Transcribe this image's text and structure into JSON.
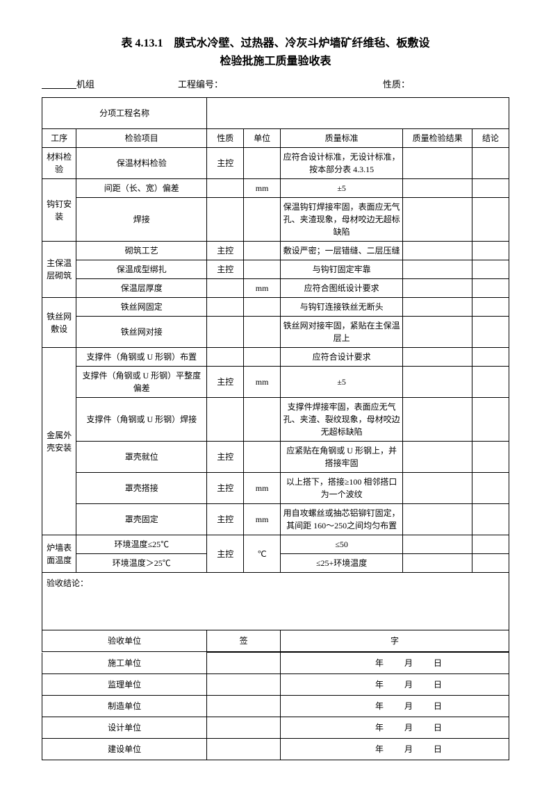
{
  "title_line1": "表 4.13.1　膜式水冷壁、过热器、冷灰斗炉墙矿纤维毡、板敷设",
  "title_line2": "检验批施工质量验收表",
  "meta": {
    "unit_label": "机组",
    "proj_no_label": "工程编号：",
    "nature_label": "性质："
  },
  "subproject_label": "分项工程名称",
  "headers": {
    "c1": "工序",
    "c2": "检验项目",
    "c3": "性质",
    "c4": "单位",
    "c5": "质量标准",
    "c6": "质量检验结果",
    "c7": "结论"
  },
  "groups": [
    {
      "name": "材料检验",
      "rows": [
        {
          "item": "保温材料检验",
          "nature": "主控",
          "unit": "",
          "std": "应符合设计标准，无设计标准，按本部分表 4.3.15"
        }
      ]
    },
    {
      "name": "钩钉安装",
      "rows": [
        {
          "item": "间距（长、宽）偏差",
          "nature": "",
          "unit": "mm",
          "std": "±5"
        },
        {
          "item": "焊接",
          "nature": "",
          "unit": "",
          "std": "保温钩钉焊接牢固，表面应无气孔、夹渣现象，母材咬边无超标缺陷"
        }
      ]
    },
    {
      "name": "主保温层砌筑",
      "rows": [
        {
          "item": "砌筑工艺",
          "nature": "主控",
          "unit": "",
          "std": "敷设严密；一层错缝、二层压缝"
        },
        {
          "item": "保温成型绑扎",
          "nature": "主控",
          "unit": "",
          "std": "与钩钉固定牢靠"
        },
        {
          "item": "保温层厚度",
          "nature": "",
          "unit": "mm",
          "std": "应符合图纸设计要求"
        }
      ]
    },
    {
      "name": "铁丝网敷设",
      "rows": [
        {
          "item": "铁丝网固定",
          "nature": "",
          "unit": "",
          "std": "与钩钉连接铁丝无断头"
        },
        {
          "item": "铁丝网对接",
          "nature": "",
          "unit": "",
          "std": "铁丝网对接牢固，紧贴在主保温层上"
        }
      ]
    },
    {
      "name": "金属外壳安装",
      "rows": [
        {
          "item": "支撑件（角钢或 U 形钢）布置",
          "nature": "",
          "unit": "",
          "std": "应符合设计要求"
        },
        {
          "item": "支撑件（角钢或 U 形钢）平整度偏差",
          "nature": "主控",
          "unit": "mm",
          "std": "±5"
        },
        {
          "item": "支撑件（角钢或 U 形钢）焊接",
          "nature": "",
          "unit": "",
          "std": "支撑件焊接牢固，表面应无气孔、夹渣、裂纹现象，母材咬边无超标缺陷"
        },
        {
          "item": "罩壳就位",
          "nature": "主控",
          "unit": "",
          "std": "应紧贴在角钢或 U 形钢上，并搭接牢固"
        },
        {
          "item": "罩壳搭接",
          "nature": "主控",
          "unit": "mm",
          "std": "以上搭下，搭接≥100 相邻搭口为一个波纹"
        },
        {
          "item": "罩壳固定",
          "nature": "主控",
          "unit": "mm",
          "std": "用自攻螺丝或抽芯铝铆钉固定，其间距 160～250之间均匀布置"
        }
      ]
    },
    {
      "name": "炉墙表面温度",
      "share": {
        "nature": "主控",
        "unit": "℃"
      },
      "rows": [
        {
          "item": "环境温度≤25℃",
          "std": "≤50"
        },
        {
          "item": "环境温度＞25℃",
          "std": "≤25+环境温度"
        }
      ]
    }
  ],
  "conclusion_label": "验收结论：",
  "sig": {
    "h1": "验收单位",
    "h2": "签",
    "h3": "字",
    "r1": "施工单位",
    "r2": "监理单位",
    "r3": "制造单位",
    "r4": "设计单位",
    "r5": "建设单位",
    "y": "年",
    "m": "月",
    "d": "日"
  }
}
